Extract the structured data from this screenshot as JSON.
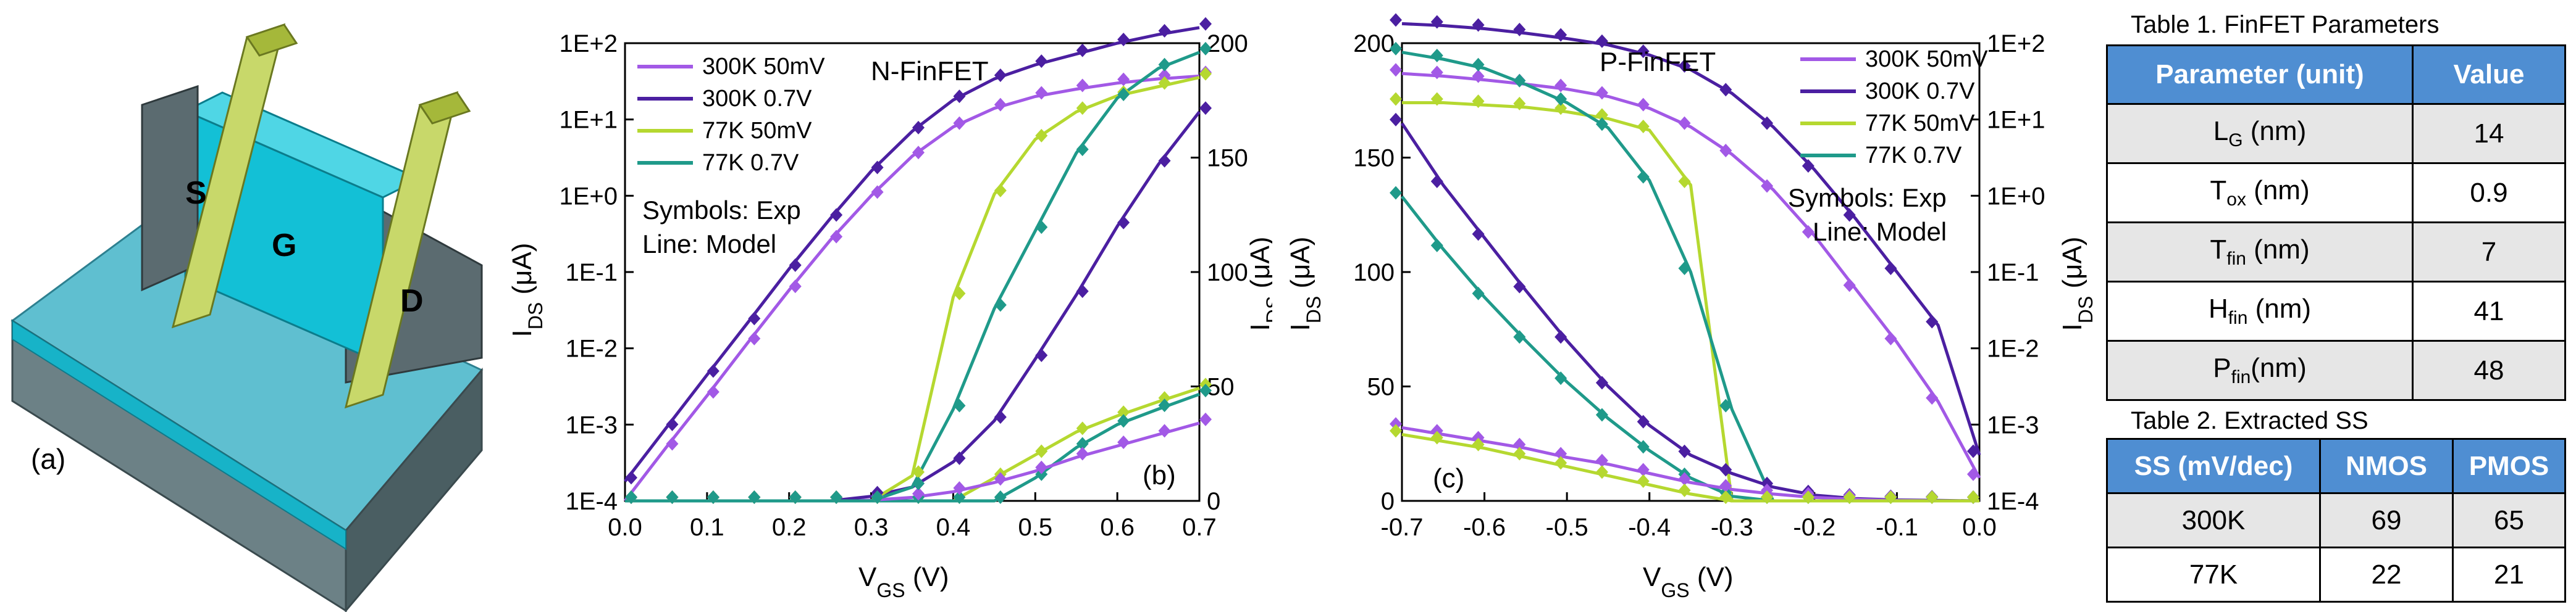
{
  "panel_a": {
    "label": "(a)",
    "terminals": {
      "source": "S",
      "gate": "G",
      "drain": "D"
    }
  },
  "panel_b": {
    "label": "(b)",
    "title": "N-FinFET",
    "notes": [
      "Symbols: Exp",
      "Line:  Model"
    ],
    "legend": [
      {
        "name": "300K  50mV",
        "color": "#a259e6"
      },
      {
        "name": "300K  0.7V",
        "color": "#4b1fa1"
      },
      {
        "name": "77K   50mV",
        "color": "#b5d830"
      },
      {
        "name": "77K   0.7V",
        "color": "#1f9a8a"
      }
    ],
    "xlabel": "V",
    "xlabel_sub": "GS",
    "xlabel_unit": " (V)",
    "ylabel_left": "I",
    "ylabel_left_sub": "DS",
    "ylabel_left_unit": " (μA)",
    "ylabel_right": "I",
    "ylabel_right_sub": "DS",
    "ylabel_right_unit": " (μA)",
    "xticks": [
      "0.0",
      "0.1",
      "0.2",
      "0.3",
      "0.4",
      "0.5",
      "0.6",
      "0.7"
    ],
    "yticks_left": [
      "1E-4",
      "1E-3",
      "1E-2",
      "1E-1",
      "1E+0",
      "1E+1",
      "1E+2"
    ],
    "yticks_right": [
      "0",
      "50",
      "100",
      "150",
      "200"
    ]
  },
  "panel_c": {
    "label": "(c)",
    "title": "P-FinFET",
    "notes": [
      "Symbols: Exp",
      "Line:  Model"
    ],
    "legend": [
      {
        "name": "300K  50mV",
        "color": "#a259e6"
      },
      {
        "name": "300K  0.7V",
        "color": "#4b1fa1"
      },
      {
        "name": "77K   50mV",
        "color": "#b5d830"
      },
      {
        "name": "77K   0.7V",
        "color": "#1f9a8a"
      }
    ],
    "xlabel": "V",
    "xlabel_sub": "GS",
    "xlabel_unit": " (V)",
    "ylabel_left": "I",
    "ylabel_left_sub": "DS",
    "ylabel_left_unit": " (μA)",
    "ylabel_right": "I",
    "ylabel_right_sub": "DS",
    "ylabel_right_unit": " (μA)",
    "xticks": [
      "-0.7",
      "-0.6",
      "-0.5",
      "-0.4",
      "-0.3",
      "-0.2",
      "-0.1",
      "0.0"
    ],
    "yticks_left": [
      "0",
      "50",
      "100",
      "150",
      "200"
    ],
    "yticks_right": [
      "1E-4",
      "1E-3",
      "1E-2",
      "1E-1",
      "1E+0",
      "1E+1",
      "1E+2"
    ]
  },
  "chart_data": [
    {
      "type": "line",
      "title": "N-FinFET",
      "xlabel": "VGS (V)",
      "ylabel_left": "IDS (μA) [log]",
      "ylabel_right": "IDS (μA) [linear]",
      "xlim": [
        0.0,
        0.7
      ],
      "ylim_left": [
        0.0001,
        100
      ],
      "ylim_right": [
        0,
        200
      ],
      "x": [
        0.0,
        0.05,
        0.1,
        0.15,
        0.2,
        0.25,
        0.3,
        0.35,
        0.4,
        0.45,
        0.5,
        0.55,
        0.6,
        0.65,
        0.7
      ],
      "series": [
        {
          "name": "300K  50mV",
          "color": "#a259e6",
          "axis": "log",
          "values": [
            0.0001,
            0.0005,
            0.0024,
            0.012,
            0.058,
            0.26,
            1.0,
            3.3,
            8.0,
            14.0,
            20.0,
            25.0,
            30.0,
            34.0,
            37.0
          ]
        },
        {
          "name": "300K  0.7V",
          "color": "#4b1fa1",
          "axis": "log",
          "values": [
            0.00018,
            0.0009,
            0.0045,
            0.022,
            0.11,
            0.5,
            2.1,
            7.0,
            18.0,
            34.0,
            52.0,
            72.0,
            100.0,
            130.0,
            160.0
          ]
        },
        {
          "name": "77K   50mV",
          "color": "#b5d830",
          "axis": "log",
          "values": [
            0.0001,
            0.0001,
            0.0001,
            0.0001,
            0.0001,
            0.0001,
            0.0001,
            0.0001,
            0.0001,
            0.0002,
            0.0004,
            0.0008,
            0.0013,
            0.002,
            0.003
          ]
        },
        {
          "name": "77K   0.7V",
          "color": "#1f9a8a",
          "axis": "log",
          "values": [
            0.0001,
            0.0001,
            0.0001,
            0.0001,
            0.0001,
            0.0001,
            0.0001,
            0.0001,
            0.0001,
            0.0001,
            0.0002,
            0.0005,
            0.001,
            0.0016,
            0.0025
          ]
        },
        {
          "name": "300K  50mV",
          "color": "#a259e6",
          "axis": "linear",
          "values": [
            0,
            0,
            0,
            0,
            0,
            0,
            0.3,
            1.5,
            4,
            8,
            13,
            19,
            24,
            29,
            34
          ]
        },
        {
          "name": "300K  0.7V",
          "color": "#4b1fa1",
          "axis": "linear",
          "values": [
            0,
            0,
            0,
            0,
            0,
            0,
            2,
            6,
            17,
            35,
            62,
            90,
            120,
            147,
            170
          ]
        },
        {
          "name": "77K   50mV",
          "color": "#b5d830",
          "axis": "linear",
          "values": [
            0,
            0,
            0,
            0,
            0,
            0,
            0,
            11,
            89,
            134,
            158,
            170,
            177,
            181,
            185
          ]
        },
        {
          "name": "77K   0.7V",
          "color": "#1f9a8a",
          "axis": "linear",
          "values": [
            0,
            0,
            0,
            0,
            0,
            0,
            0,
            6,
            40,
            84,
            118,
            152,
            176,
            189,
            196
          ]
        }
      ]
    },
    {
      "type": "line",
      "title": "P-FinFET",
      "xlabel": "VGS (V)",
      "ylabel_left": "IDS (μA) [linear]",
      "ylabel_right": "IDS (μA) [log]",
      "xlim": [
        -0.7,
        0.0
      ],
      "ylim_left": [
        0,
        200
      ],
      "ylim_right": [
        0.0001,
        100
      ],
      "x": [
        -0.7,
        -0.65,
        -0.6,
        -0.55,
        -0.5,
        -0.45,
        -0.4,
        -0.35,
        -0.3,
        -0.25,
        -0.2,
        -0.15,
        -0.1,
        -0.05,
        0.0
      ],
      "series": [
        {
          "name": "300K  50mV",
          "color": "#a259e6",
          "axis": "log",
          "values": [
            40,
            37,
            33,
            29,
            25,
            20,
            14,
            8.0,
            3.5,
            1.2,
            0.3,
            0.06,
            0.012,
            0.002,
            0.0002
          ]
        },
        {
          "name": "300K  0.7V",
          "color": "#4b1fa1",
          "axis": "log",
          "values": [
            180,
            170,
            155,
            135,
            115,
            95,
            70,
            45,
            22,
            8,
            2.2,
            0.5,
            0.1,
            0.02,
            0.0004
          ]
        },
        {
          "name": "77K   50mV",
          "color": "#b5d830",
          "axis": "linear",
          "values": [
            174,
            174,
            173,
            172,
            170,
            167,
            162,
            138,
            0,
            0,
            0,
            0,
            0,
            0,
            0
          ]
        },
        {
          "name": "77K   0.7V",
          "color": "#1f9a8a",
          "axis": "linear",
          "values": [
            196,
            193,
            189,
            182,
            174,
            163,
            140,
            100,
            40,
            0,
            0,
            0,
            0,
            0,
            0
          ]
        },
        {
          "name": "300K  0.7V",
          "color": "#4b1fa1",
          "axis": "linear",
          "values": [
            165,
            138,
            115,
            92,
            70,
            50,
            33,
            20,
            12,
            6,
            2.5,
            1,
            0.4,
            0.2,
            0
          ]
        },
        {
          "name": "77K   0.7V",
          "color": "#1f9a8a",
          "axis": "linear",
          "values": [
            133,
            110,
            89,
            70,
            52,
            36,
            22,
            10,
            2,
            0,
            0,
            0,
            0,
            0,
            0
          ]
        },
        {
          "name": "300K  50mV",
          "color": "#a259e6",
          "axis": "linear",
          "values": [
            32,
            29,
            26,
            23,
            19,
            16,
            12,
            8,
            5,
            3,
            1.5,
            0.7,
            0.2,
            0,
            0
          ]
        },
        {
          "name": "77K   50mV",
          "color": "#b5d830",
          "axis": "linear",
          "values": [
            29,
            26,
            23,
            19,
            15,
            11,
            7,
            3,
            0,
            0,
            0,
            0,
            0,
            0,
            0
          ]
        }
      ]
    }
  ],
  "table1": {
    "caption": "Table 1. FinFET Parameters",
    "headers": [
      "Parameter (unit)",
      "Value"
    ],
    "rows": [
      {
        "param": "L",
        "sub": "G",
        "unit": " (nm)",
        "value": "14"
      },
      {
        "param": "T",
        "sub": "ox",
        "unit": " (nm)",
        "value": "0.9"
      },
      {
        "param": "T",
        "sub": "fin",
        "unit": " (nm)",
        "value": "7"
      },
      {
        "param": "H",
        "sub": "fin",
        "unit": " (nm)",
        "value": "41"
      },
      {
        "param": "P",
        "sub": "fin",
        "unit": "(nm)",
        "value": "48"
      }
    ]
  },
  "table2": {
    "caption": "Table 2. Extracted SS",
    "headers": [
      "SS (mV/dec)",
      "NMOS",
      "PMOS"
    ],
    "rows": [
      {
        "temp": "300K",
        "nmos": "69",
        "pmos": "65"
      },
      {
        "temp": "77K",
        "nmos": "22",
        "pmos": "21"
      }
    ]
  }
}
